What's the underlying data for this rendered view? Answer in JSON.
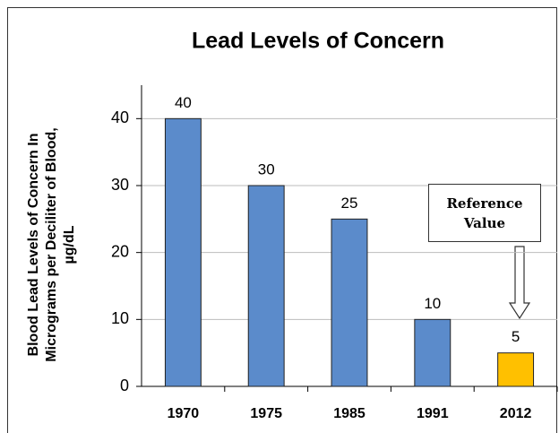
{
  "chart_data": {
    "type": "bar",
    "title": "Lead Levels of Concern",
    "ylabel": [
      "Blood Lead Levels of Concern In",
      "Micrograms per Deciliter of Blood,",
      "µg/dL"
    ],
    "categories": [
      "1970",
      "1975",
      "1985",
      "1991",
      "2012"
    ],
    "values": [
      40,
      30,
      25,
      10,
      5
    ],
    "colors": [
      "#5b8bcb",
      "#5b8bcb",
      "#5b8bcb",
      "#5b8bcb",
      "#ffc000"
    ],
    "ylim": [
      0,
      45
    ],
    "yticks": [
      0,
      10,
      20,
      30,
      40
    ],
    "grid": true,
    "annotation": "Reference Value"
  }
}
